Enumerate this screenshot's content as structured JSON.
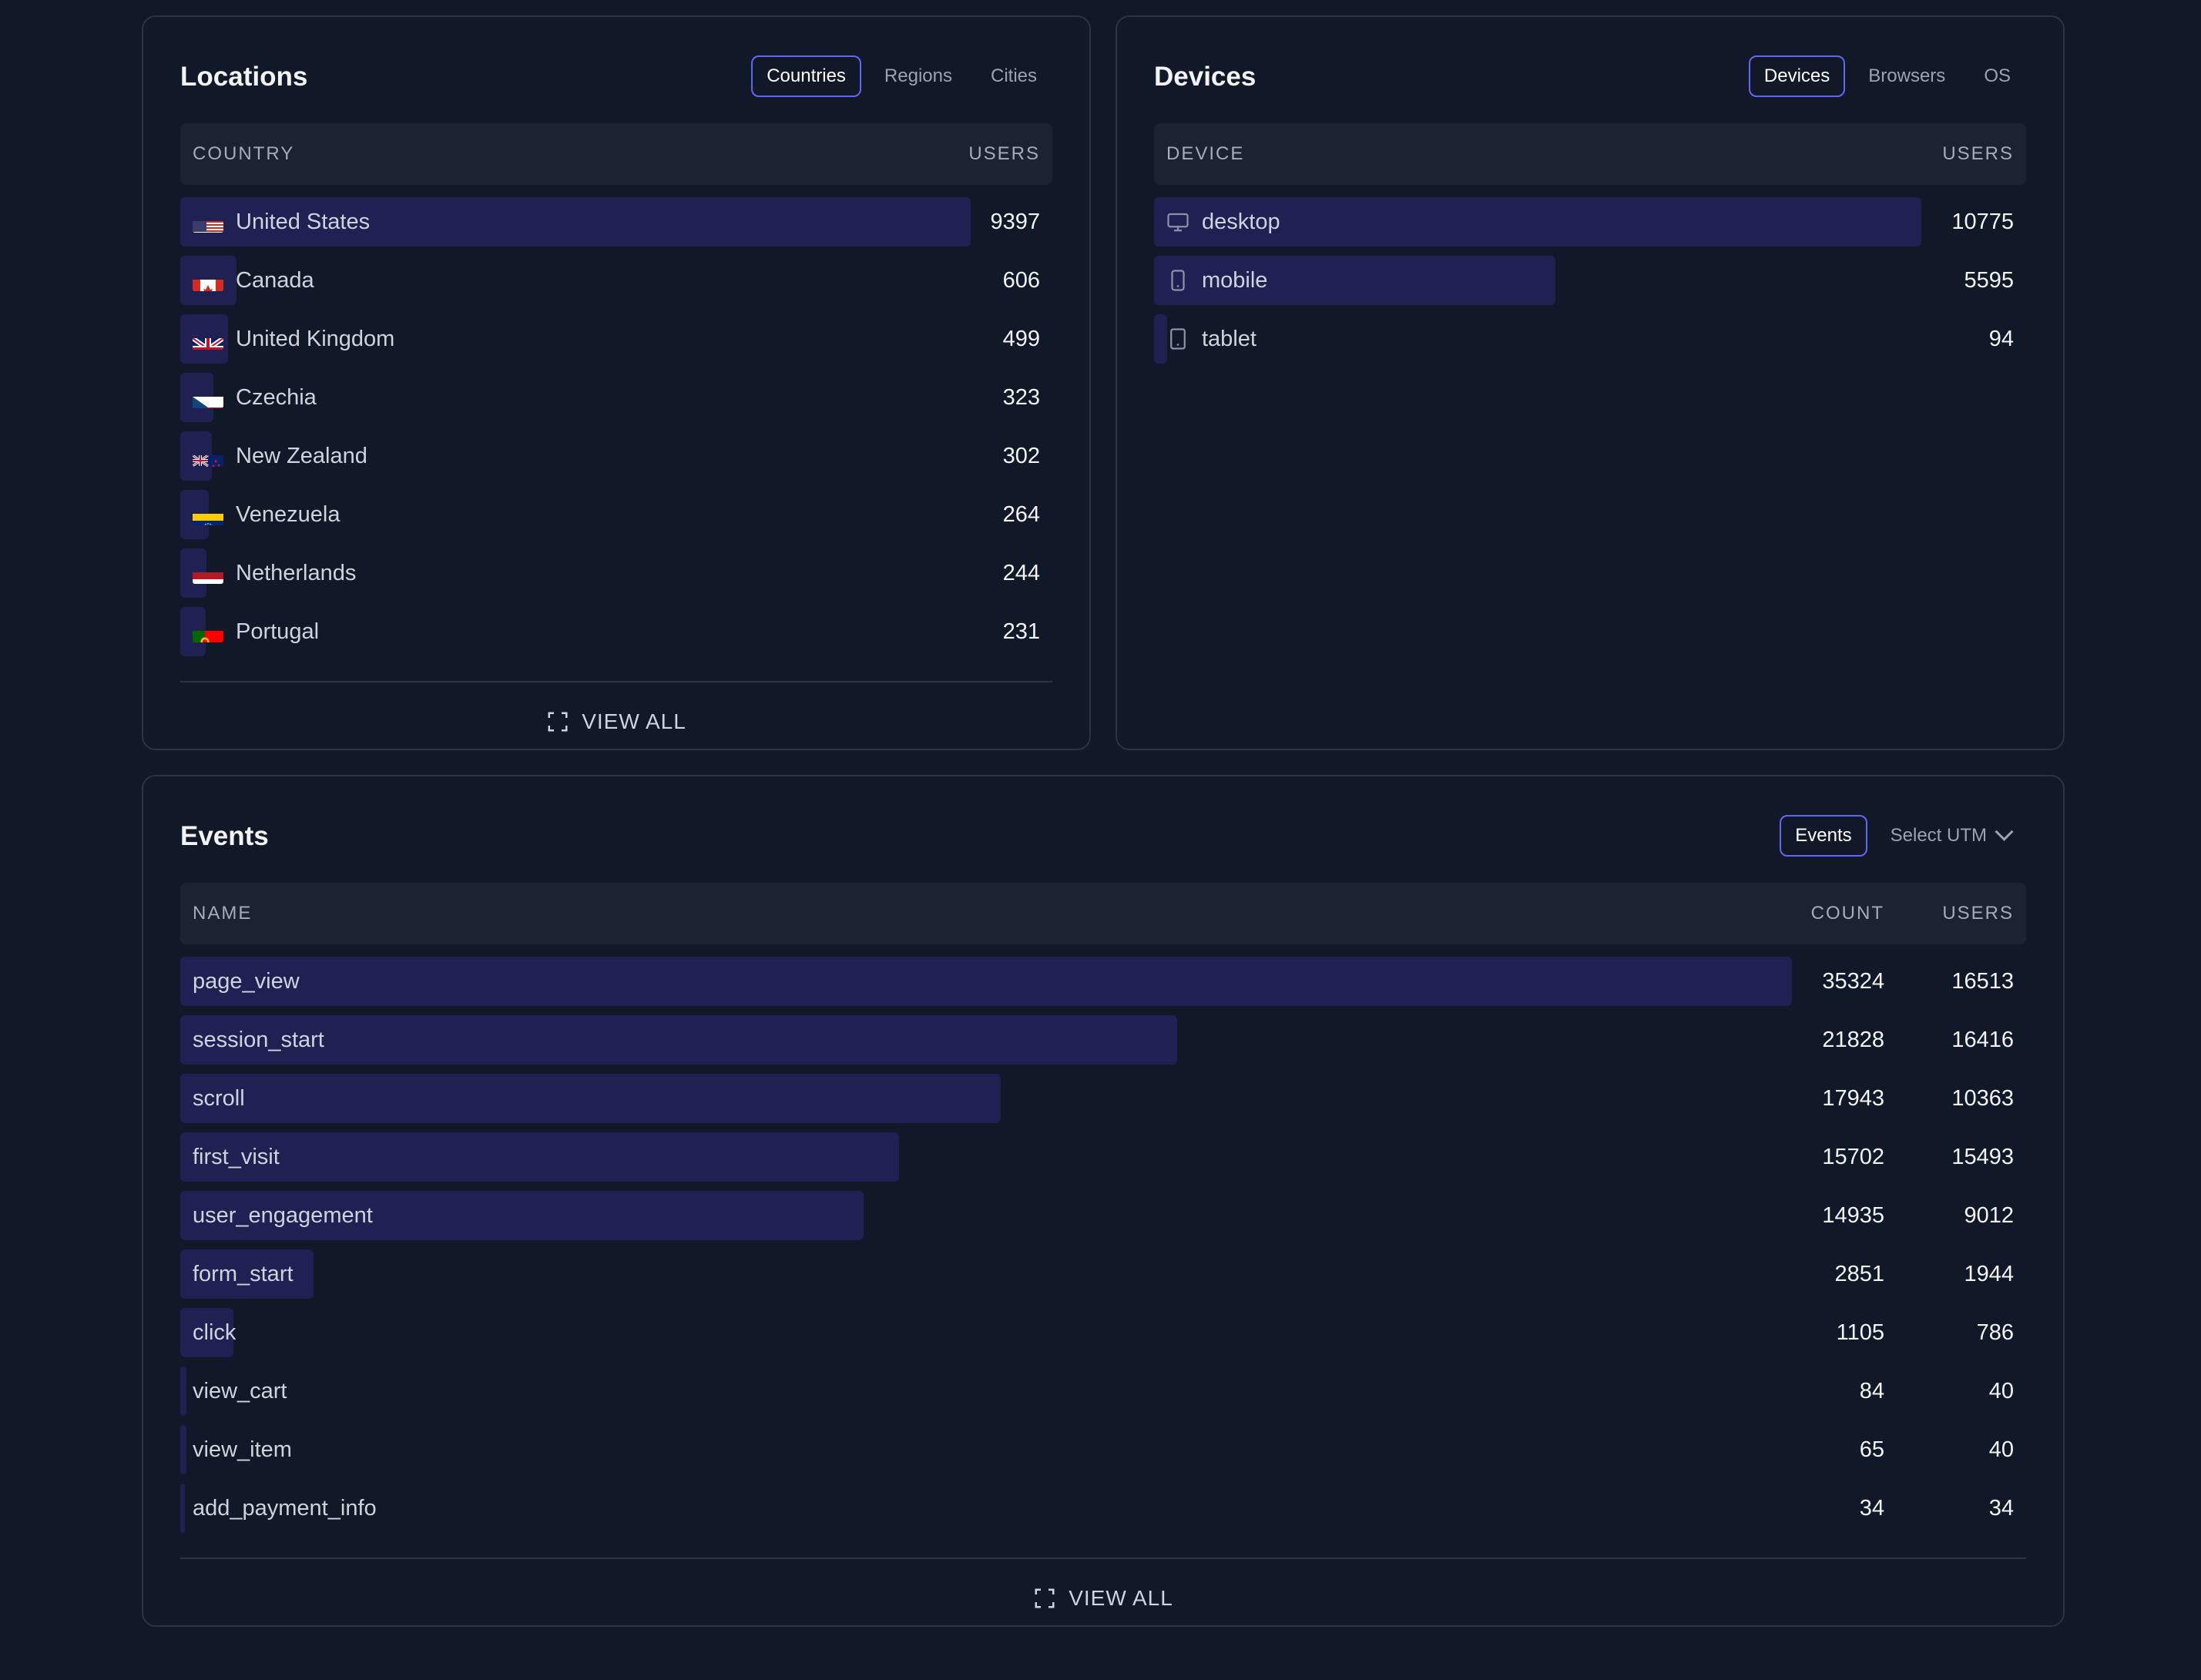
{
  "locations": {
    "title": "Locations",
    "tabs": [
      "Countries",
      "Regions",
      "Cities"
    ],
    "active_tab": "Countries",
    "col_name": "COUNTRY",
    "col_users": "USERS",
    "rows": [
      {
        "name": "United States",
        "users": "9397",
        "flag": "us",
        "share": 1.0
      },
      {
        "name": "Canada",
        "users": "606",
        "flag": "ca",
        "share": 0.064
      },
      {
        "name": "United Kingdom",
        "users": "499",
        "flag": "gb",
        "share": 0.053
      },
      {
        "name": "Czechia",
        "users": "323",
        "flag": "cz",
        "share": 0.034
      },
      {
        "name": "New Zealand",
        "users": "302",
        "flag": "nz",
        "share": 0.032
      },
      {
        "name": "Venezuela",
        "users": "264",
        "flag": "ve",
        "share": 0.028
      },
      {
        "name": "Netherlands",
        "users": "244",
        "flag": "nl",
        "share": 0.026
      },
      {
        "name": "Portugal",
        "users": "231",
        "flag": "pt",
        "share": 0.025
      }
    ],
    "view_all": "VIEW ALL"
  },
  "devices": {
    "title": "Devices",
    "tabs": [
      "Devices",
      "Browsers",
      "OS"
    ],
    "active_tab": "Devices",
    "col_name": "DEVICE",
    "col_users": "USERS",
    "rows": [
      {
        "name": "desktop",
        "users": "10775",
        "icon": "monitor-icon",
        "share": 1.0
      },
      {
        "name": "mobile",
        "users": "5595",
        "icon": "phone-icon",
        "share": 0.519
      },
      {
        "name": "tablet",
        "users": "94",
        "icon": "tablet-icon",
        "share": 0.009
      }
    ]
  },
  "events": {
    "title": "Events",
    "tab": "Events",
    "utm_select": "Select UTM",
    "col_name": "NAME",
    "col_count": "COUNT",
    "col_users": "USERS",
    "rows": [
      {
        "name": "page_view",
        "count": "35324",
        "users": "16513",
        "share": 1.0
      },
      {
        "name": "session_start",
        "count": "21828",
        "users": "16416",
        "share": 0.618
      },
      {
        "name": "scroll",
        "count": "17943",
        "users": "10363",
        "share": 0.508
      },
      {
        "name": "first_visit",
        "count": "15702",
        "users": "15493",
        "share": 0.445
      },
      {
        "name": "user_engagement",
        "count": "14935",
        "users": "9012",
        "share": 0.423
      },
      {
        "name": "form_start",
        "count": "2851",
        "users": "1944",
        "share": 0.081
      },
      {
        "name": "click",
        "count": "1105",
        "users": "786",
        "share": 0.031
      },
      {
        "name": "view_cart",
        "count": "84",
        "users": "40",
        "share": 0.002
      },
      {
        "name": "view_item",
        "count": "65",
        "users": "40",
        "share": 0.002
      },
      {
        "name": "add_payment_info",
        "count": "34",
        "users": "34",
        "share": 0.001
      }
    ],
    "view_all": "VIEW ALL"
  },
  "colors": {
    "background": "#111827",
    "bar": "#1e2152",
    "accent": "#6366f1",
    "header": "#1b2232"
  }
}
